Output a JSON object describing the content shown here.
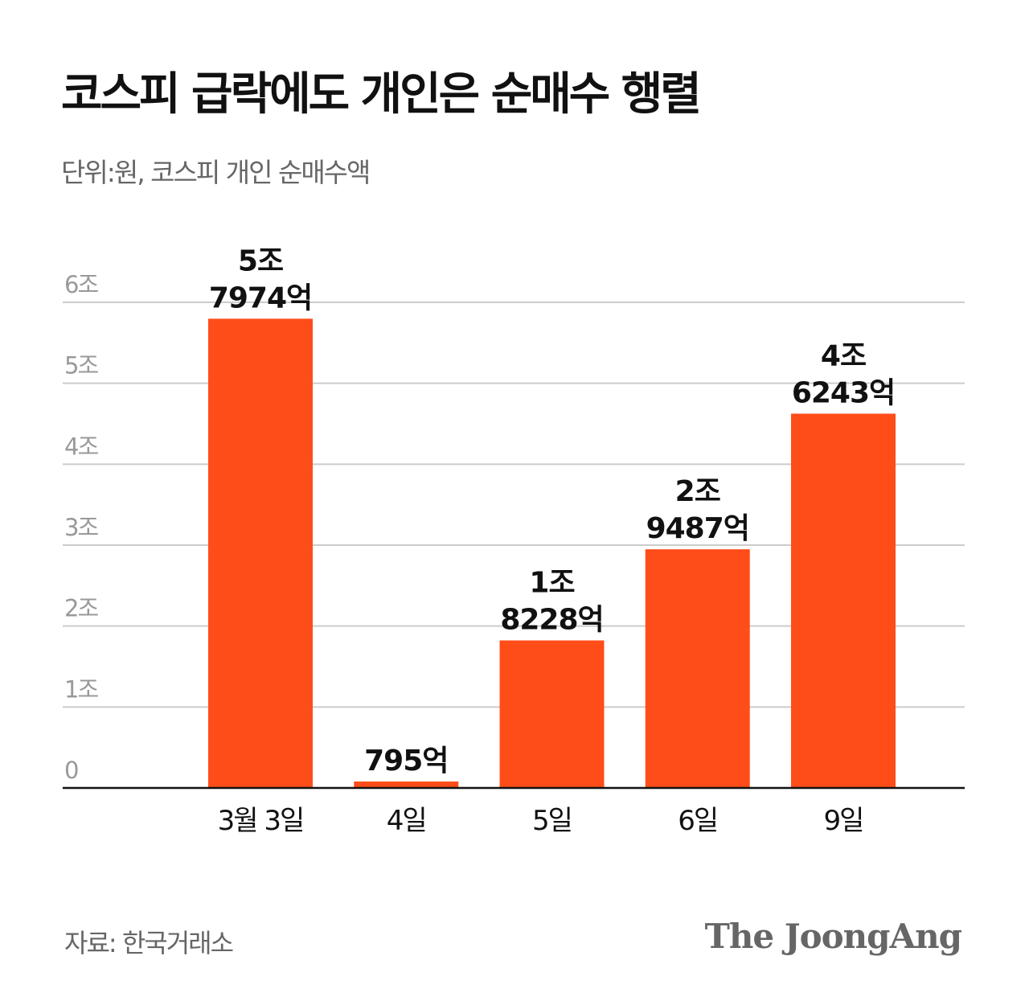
{
  "title": "코스피 급락에도 개인은 순매수 행렬",
  "subtitle": "단위:원, 코스피 개인 순매수액",
  "source": "자료: 한국거래소",
  "logo": "The JoongAng",
  "colors": {
    "bar": "#FF4D1A",
    "grid": "#CCCCCC",
    "axis": "#111111",
    "tick_label": "#999999"
  },
  "chart_data": {
    "type": "bar",
    "categories": [
      "3월 3일",
      "4일",
      "5일",
      "6일",
      "9일"
    ],
    "values": [
      5.7974,
      0.0795,
      1.8228,
      2.9487,
      4.6243
    ],
    "unit": "조 원",
    "data_labels": [
      [
        "5조",
        "7974억"
      ],
      [
        "795억"
      ],
      [
        "1조",
        "8228억"
      ],
      [
        "2조",
        "9487억"
      ],
      [
        "4조",
        "6243억"
      ]
    ],
    "yticks": [
      0,
      1,
      2,
      3,
      4,
      5,
      6
    ],
    "ytick_labels": [
      "0",
      "1조",
      "2조",
      "3조",
      "4조",
      "5조",
      "6조"
    ],
    "ylim": [
      0,
      6
    ],
    "grid": true,
    "legend": "none"
  }
}
